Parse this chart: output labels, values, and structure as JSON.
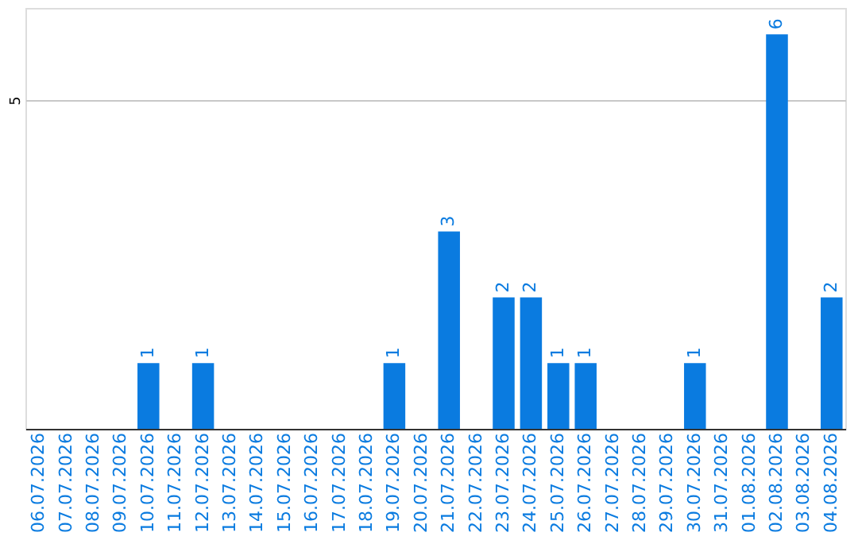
{
  "chart_data": {
    "type": "bar",
    "categories": [
      "06.07.2026",
      "07.07.2026",
      "08.07.2026",
      "09.07.2026",
      "10.07.2026",
      "11.07.2026",
      "12.07.2026",
      "13.07.2026",
      "14.07.2026",
      "15.07.2026",
      "16.07.2026",
      "17.07.2026",
      "18.07.2026",
      "19.07.2026",
      "20.07.2026",
      "21.07.2026",
      "22.07.2026",
      "23.07.2026",
      "24.07.2026",
      "25.07.2026",
      "26.07.2026",
      "27.07.2026",
      "28.07.2026",
      "29.07.2026",
      "30.07.2026",
      "31.07.2026",
      "01.08.2026",
      "02.08.2026",
      "03.08.2026",
      "04.08.2026"
    ],
    "values": [
      0,
      0,
      0,
      0,
      1,
      0,
      1,
      0,
      0,
      0,
      0,
      0,
      0,
      1,
      0,
      3,
      0,
      2,
      2,
      1,
      1,
      0,
      0,
      0,
      1,
      0,
      0,
      6,
      0,
      2
    ],
    "value_labels": [
      null,
      null,
      null,
      null,
      "1",
      null,
      "1",
      null,
      null,
      null,
      null,
      null,
      null,
      "1",
      null,
      "3",
      null,
      "2",
      "2",
      "1",
      "1",
      null,
      null,
      null,
      "1",
      null,
      null,
      "6",
      null,
      "2"
    ],
    "color": "#0a7be0",
    "ylim": [
      0,
      6.4
    ],
    "yticks": [
      5
    ],
    "grid": "y"
  }
}
